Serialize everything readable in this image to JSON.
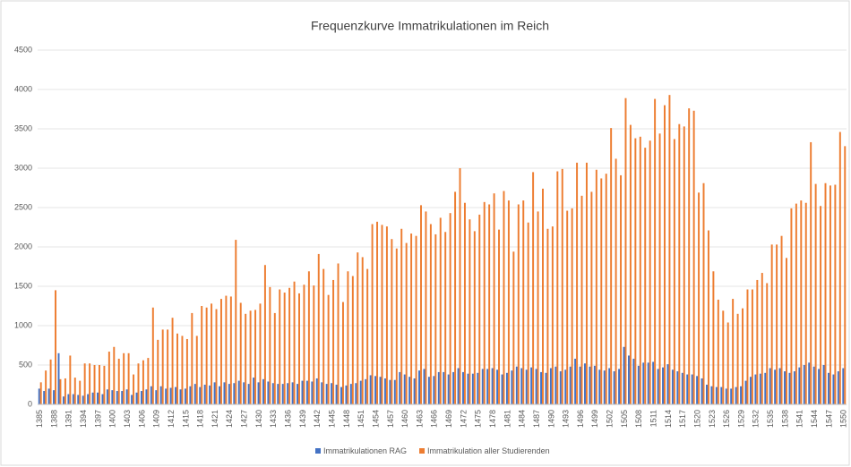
{
  "chart_data": {
    "type": "bar",
    "title": "Frequenzkurve  Immatrikulationen im Reich",
    "categories": [
      1385,
      null,
      null,
      1388,
      null,
      null,
      1391,
      null,
      null,
      1394,
      null,
      null,
      1397,
      null,
      null,
      1400,
      null,
      null,
      1403,
      null,
      null,
      1406,
      null,
      null,
      1409,
      null,
      null,
      1412,
      null,
      null,
      1415,
      null,
      null,
      1418,
      null,
      null,
      1421,
      null,
      null,
      1424,
      null,
      null,
      1427,
      null,
      null,
      1430,
      null,
      null,
      1433,
      null,
      null,
      1436,
      null,
      null,
      1439,
      null,
      null,
      1442,
      null,
      null,
      1445,
      null,
      null,
      1448,
      null,
      null,
      1451,
      null,
      null,
      1454,
      null,
      null,
      1457,
      null,
      null,
      1460,
      null,
      null,
      1463,
      null,
      null,
      1466,
      null,
      null,
      1469,
      null,
      null,
      1472,
      null,
      null,
      1475,
      null,
      null,
      1478,
      null,
      null,
      1481,
      null,
      null,
      1484,
      null,
      null,
      1487,
      null,
      null,
      1490,
      null,
      null,
      1493,
      null,
      null,
      1496,
      null,
      null,
      1499,
      null,
      null,
      1502,
      null,
      null,
      1505,
      null,
      null,
      1508,
      null,
      null,
      1511,
      null,
      null,
      1514,
      null,
      null,
      1517,
      null,
      null,
      1520,
      null,
      null,
      1523,
      null,
      null,
      1526,
      null,
      null,
      1529,
      null,
      null,
      1532,
      null,
      null,
      1535,
      null,
      null,
      1538,
      null,
      null,
      1541,
      null,
      null,
      1544,
      null,
      null,
      1547,
      null,
      null,
      1550
    ],
    "series": [
      {
        "name": "Immatrikulationen RAG",
        "color": "#4472c4",
        "values": [
          200,
          170,
          200,
          180,
          650,
          100,
          130,
          130,
          120,
          110,
          130,
          150,
          150,
          130,
          190,
          180,
          170,
          170,
          190,
          120,
          150,
          170,
          190,
          230,
          180,
          230,
          200,
          210,
          220,
          190,
          200,
          230,
          260,
          220,
          250,
          240,
          280,
          230,
          280,
          260,
          270,
          300,
          280,
          260,
          340,
          280,
          320,
          290,
          270,
          260,
          260,
          270,
          280,
          260,
          300,
          300,
          290,
          330,
          280,
          260,
          270,
          250,
          220,
          240,
          260,
          270,
          300,
          320,
          370,
          360,
          350,
          330,
          310,
          310,
          410,
          380,
          350,
          330,
          430,
          450,
          350,
          360,
          410,
          410,
          380,
          410,
          460,
          410,
          390,
          390,
          400,
          450,
          450,
          460,
          440,
          380,
          400,
          430,
          480,
          460,
          440,
          470,
          450,
          410,
          400,
          460,
          480,
          420,
          440,
          480,
          580,
          480,
          520,
          480,
          490,
          440,
          430,
          460,
          420,
          450,
          730,
          620,
          580,
          490,
          530,
          530,
          540,
          450,
          470,
          510,
          440,
          420,
          400,
          380,
          380,
          360,
          330,
          250,
          230,
          220,
          220,
          200,
          200,
          220,
          230,
          300,
          350,
          380,
          390,
          400,
          460,
          440,
          460,
          420,
          400,
          420,
          470,
          500,
          530,
          480,
          450,
          500,
          400,
          380,
          420,
          460
        ]
      },
      {
        "name": "Immatrikulation aller Studierenden",
        "color": "#ed7d31",
        "values": [
          280,
          430,
          570,
          1450,
          320,
          330,
          620,
          340,
          300,
          520,
          520,
          500,
          500,
          490,
          670,
          730,
          580,
          650,
          650,
          380,
          520,
          560,
          590,
          1230,
          820,
          950,
          950,
          1100,
          900,
          870,
          830,
          1160,
          870,
          1250,
          1230,
          1280,
          1210,
          1340,
          1380,
          1370,
          2090,
          1290,
          1150,
          1190,
          1200,
          1280,
          1770,
          1490,
          1160,
          1460,
          1420,
          1480,
          1560,
          1410,
          1520,
          1690,
          1510,
          1910,
          1720,
          1390,
          1580,
          1790,
          1300,
          1690,
          1630,
          1930,
          1870,
          1720,
          2290,
          2320,
          2280,
          2260,
          2100,
          1980,
          2230,
          2050,
          2170,
          2140,
          2530,
          2450,
          2290,
          2160,
          2370,
          2190,
          2430,
          2700,
          3000,
          2560,
          2350,
          2200,
          2410,
          2570,
          2540,
          2680,
          2220,
          2710,
          2590,
          1940,
          2540,
          2590,
          2310,
          2950,
          2450,
          2740,
          2230,
          2260,
          2960,
          2990,
          2460,
          2490,
          3070,
          2650,
          3070,
          2700,
          2980,
          2870,
          2930,
          3510,
          3120,
          2910,
          3890,
          3550,
          3380,
          3400,
          3260,
          3350,
          3880,
          3440,
          3800,
          3930,
          3370,
          3560,
          3530,
          3760,
          3730,
          2690,
          2810,
          2210,
          1690,
          1330,
          1190,
          1040,
          1340,
          1150,
          1220,
          1460,
          1460,
          1580,
          1670,
          1540,
          2030,
          2030,
          2140,
          1860,
          2490,
          2550,
          2590,
          2560,
          3330,
          2800,
          2520,
          2810,
          2780,
          2790,
          3460,
          3280
        ]
      }
    ],
    "ylim": [
      0,
      4500
    ],
    "yticks": [
      0,
      500,
      1000,
      1500,
      2000,
      2500,
      3000,
      3500,
      4000,
      4500
    ],
    "grid": true,
    "legend": "bottom"
  }
}
